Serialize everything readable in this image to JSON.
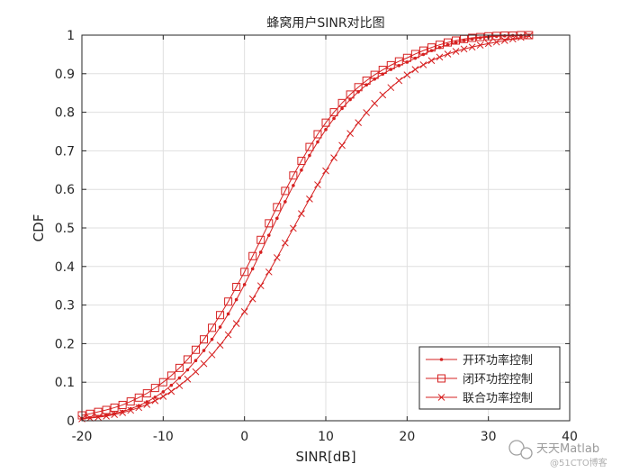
{
  "chart_data": {
    "type": "line",
    "title": "蜂窝用户SINR对比图",
    "xlabel": "SINR[dB]",
    "ylabel": "CDF",
    "xlim": [
      -20,
      40
    ],
    "ylim": [
      0,
      1
    ],
    "xticks": [
      "-20",
      "-10",
      "0",
      "10",
      "20",
      "30",
      "40"
    ],
    "yticks": [
      "0",
      "0.1",
      "0.2",
      "0.3",
      "0.4",
      "0.5",
      "0.6",
      "0.7",
      "0.8",
      "0.9",
      "1"
    ],
    "grid": true,
    "legend_position": "bottom-right",
    "series": [
      {
        "name": "开环功率控制",
        "marker": "dot",
        "color": "#d62020",
        "x": [
          -20,
          -19,
          -18,
          -17,
          -16,
          -15,
          -14,
          -13,
          -12,
          -11,
          -10,
          -9,
          -8,
          -7,
          -6,
          -5,
          -4,
          -3,
          -2,
          -1,
          0,
          1,
          2,
          3,
          4,
          5,
          6,
          7,
          8,
          9,
          10,
          11,
          12,
          13,
          14,
          15,
          16,
          17,
          18,
          19,
          20,
          21,
          22,
          23,
          24,
          25,
          26,
          27,
          28,
          29,
          30,
          31,
          32,
          33,
          34,
          35
        ],
        "y": [
          0.006,
          0.008,
          0.011,
          0.014,
          0.019,
          0.024,
          0.031,
          0.039,
          0.049,
          0.061,
          0.075,
          0.092,
          0.111,
          0.132,
          0.156,
          0.182,
          0.211,
          0.243,
          0.277,
          0.314,
          0.353,
          0.394,
          0.437,
          0.481,
          0.525,
          0.568,
          0.61,
          0.65,
          0.688,
          0.723,
          0.755,
          0.784,
          0.81,
          0.833,
          0.853,
          0.871,
          0.886,
          0.899,
          0.911,
          0.921,
          0.93,
          0.94,
          0.95,
          0.96,
          0.968,
          0.975,
          0.981,
          0.986,
          0.99,
          0.993,
          0.995,
          0.997,
          0.998,
          0.999,
          0.999,
          1.0
        ]
      },
      {
        "name": "闭环功控控制",
        "marker": "square",
        "color": "#d62020",
        "x": [
          -20,
          -19,
          -18,
          -17,
          -16,
          -15,
          -14,
          -13,
          -12,
          -11,
          -10,
          -9,
          -8,
          -7,
          -6,
          -5,
          -4,
          -3,
          -2,
          -1,
          0,
          1,
          2,
          3,
          4,
          5,
          6,
          7,
          8,
          9,
          10,
          11,
          12,
          13,
          14,
          15,
          16,
          17,
          18,
          19,
          20,
          21,
          22,
          23,
          24,
          25,
          26,
          27,
          28,
          29,
          30,
          31,
          32,
          33,
          34,
          35
        ],
        "y": [
          0.014,
          0.018,
          0.023,
          0.028,
          0.034,
          0.041,
          0.05,
          0.06,
          0.071,
          0.085,
          0.1,
          0.117,
          0.137,
          0.159,
          0.184,
          0.211,
          0.241,
          0.274,
          0.309,
          0.347,
          0.386,
          0.427,
          0.469,
          0.512,
          0.554,
          0.596,
          0.636,
          0.674,
          0.71,
          0.743,
          0.773,
          0.8,
          0.824,
          0.846,
          0.865,
          0.882,
          0.897,
          0.91,
          0.922,
          0.932,
          0.941,
          0.951,
          0.96,
          0.968,
          0.975,
          0.981,
          0.986,
          0.99,
          0.993,
          0.995,
          0.997,
          0.998,
          0.999,
          0.999,
          1.0,
          1.0
        ]
      },
      {
        "name": "联合功率控制",
        "marker": "x",
        "color": "#d62020",
        "x": [
          -20,
          -19,
          -18,
          -17,
          -16,
          -15,
          -14,
          -13,
          -12,
          -11,
          -10,
          -9,
          -8,
          -7,
          -6,
          -5,
          -4,
          -3,
          -2,
          -1,
          0,
          1,
          2,
          3,
          4,
          5,
          6,
          7,
          8,
          9,
          10,
          11,
          12,
          13,
          14,
          15,
          16,
          17,
          18,
          19,
          20,
          21,
          22,
          23,
          24,
          25,
          26,
          27,
          28,
          29,
          30,
          31,
          32,
          33,
          34,
          35
        ],
        "y": [
          0.005,
          0.007,
          0.009,
          0.012,
          0.016,
          0.021,
          0.027,
          0.034,
          0.042,
          0.052,
          0.063,
          0.076,
          0.091,
          0.108,
          0.127,
          0.148,
          0.171,
          0.196,
          0.223,
          0.252,
          0.283,
          0.316,
          0.35,
          0.386,
          0.423,
          0.461,
          0.499,
          0.537,
          0.575,
          0.612,
          0.648,
          0.682,
          0.714,
          0.745,
          0.773,
          0.799,
          0.823,
          0.845,
          0.864,
          0.882,
          0.897,
          0.911,
          0.923,
          0.934,
          0.943,
          0.951,
          0.958,
          0.964,
          0.969,
          0.974,
          0.978,
          0.982,
          0.986,
          0.99,
          0.994,
          0.998
        ]
      }
    ]
  },
  "watermark": {
    "main": "天天Matlab",
    "sub": "@51CTO博客"
  }
}
